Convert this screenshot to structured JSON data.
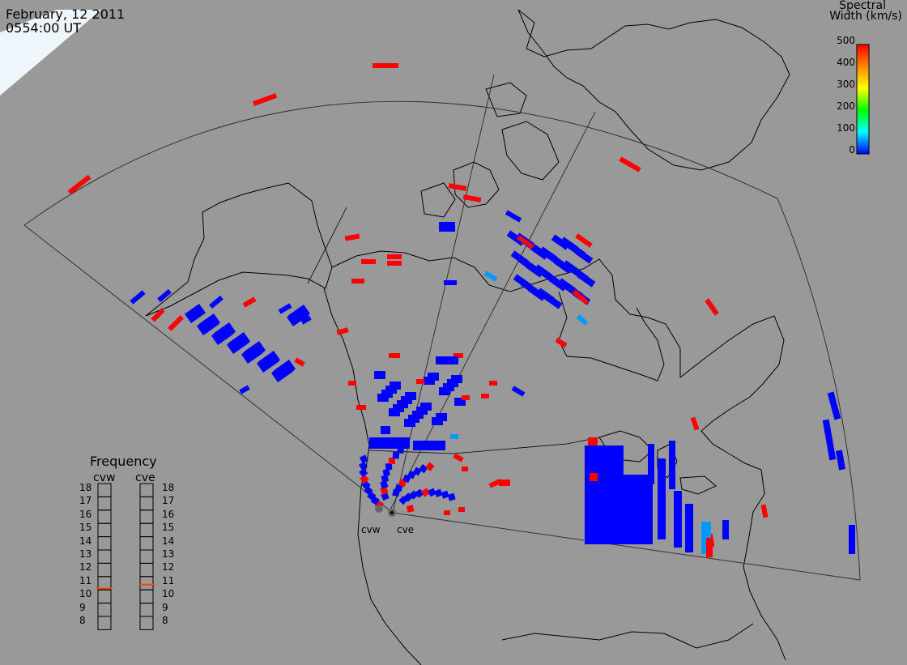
{
  "header": {
    "date": "February, 12 2011",
    "time": "0554:00 UT"
  },
  "colorbar": {
    "title_line1": "Spectral",
    "title_line2": "Width (km/s)",
    "ticks": [
      "500",
      "400",
      "300",
      "200",
      "100",
      "0"
    ],
    "range": [
      0,
      500
    ],
    "colors": [
      "#ff0000",
      "#ff8800",
      "#ffff00",
      "#00ff00",
      "#00ffff",
      "#0000ff"
    ]
  },
  "frequency_panel": {
    "title": "Frequency",
    "radars": [
      {
        "name": "cvw",
        "frequency_mhz": 10.6
      },
      {
        "name": "cve",
        "frequency_mhz": 10.9
      }
    ],
    "scale": [
      "18",
      "17",
      "16",
      "15",
      "14",
      "13",
      "12",
      "11",
      "10",
      "9",
      "8"
    ],
    "marker_color": "#ff4400"
  },
  "sites": [
    {
      "name": "cvw"
    },
    {
      "name": "cve"
    }
  ],
  "colors": {
    "background": "#999999",
    "land": "#999999",
    "coast": "#000000",
    "fov": "#333333",
    "low_width": "#0000ff",
    "mid_width": "#0099ff",
    "high_width": "#ff0000"
  }
}
